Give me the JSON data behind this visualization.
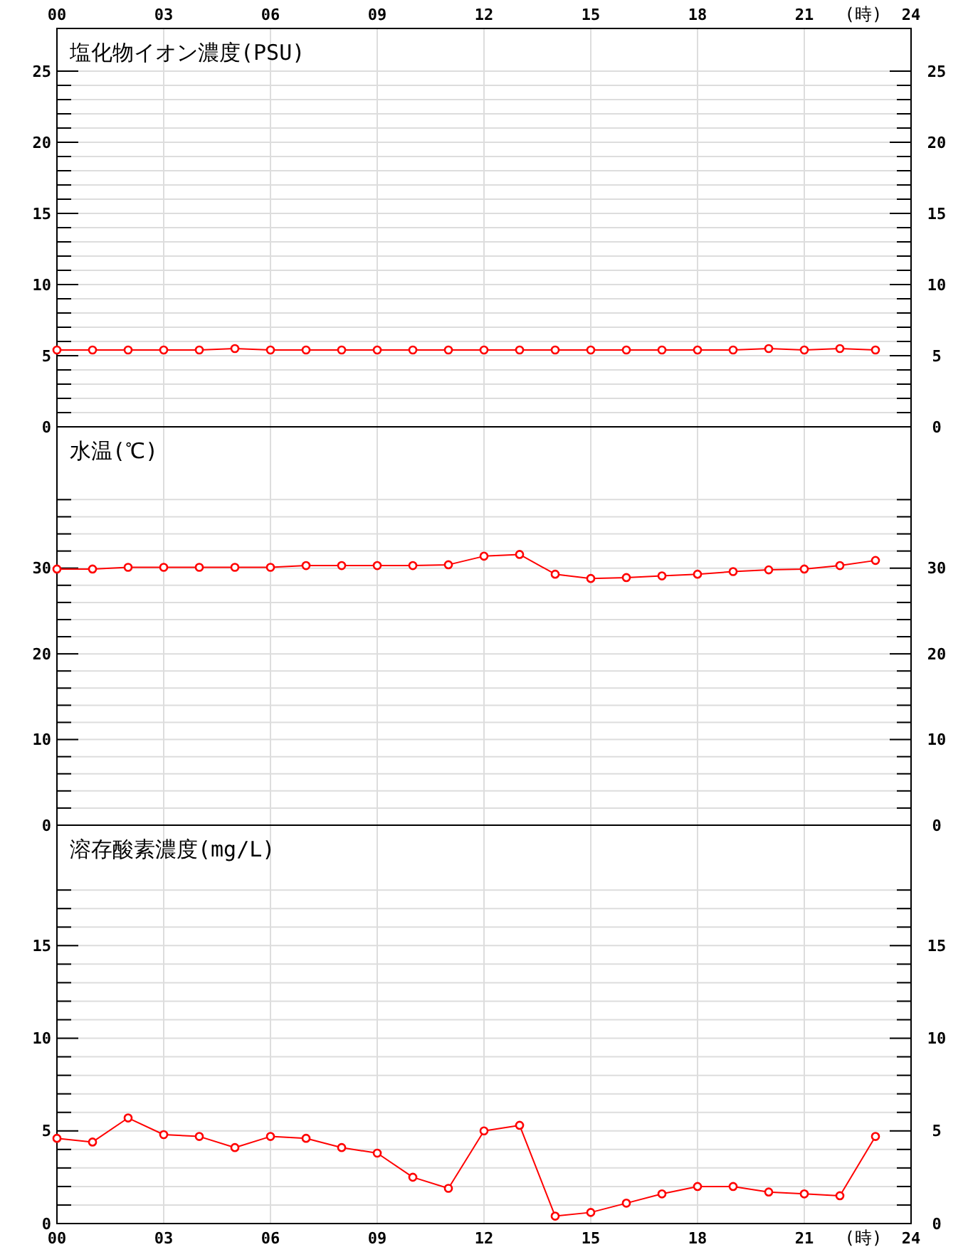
{
  "chart_data": [
    {
      "type": "line",
      "title": "塩化物イオン濃度(PSU)",
      "x2label": "(時)",
      "xlim": [
        0,
        24
      ],
      "x2lim": [
        0,
        24
      ],
      "x2ticks": [
        {
          "value": 0,
          "label": "00"
        },
        {
          "value": 3,
          "label": "03"
        },
        {
          "value": 6,
          "label": "06"
        },
        {
          "value": 9,
          "label": "09"
        },
        {
          "value": 12,
          "label": "12"
        },
        {
          "value": 15,
          "label": "15"
        },
        {
          "value": 18,
          "label": "18"
        },
        {
          "value": 21,
          "label": "21"
        },
        {
          "value": 24,
          "label": "24"
        }
      ],
      "ylim": [
        0,
        28
      ],
      "y2lim": [
        0,
        28
      ],
      "yticks": [
        0,
        {
          "value": 1,
          "label": null
        },
        {
          "value": 2,
          "label": null
        },
        {
          "value": 3,
          "label": null
        },
        {
          "value": 4,
          "label": null
        },
        5,
        {
          "value": 6,
          "label": null
        },
        {
          "value": 7,
          "label": null
        },
        {
          "value": 8,
          "label": null
        },
        {
          "value": 9,
          "label": null
        },
        10,
        {
          "value": 11,
          "label": null
        },
        {
          "value": 12,
          "label": null
        },
        {
          "value": 13,
          "label": null
        },
        {
          "value": 14,
          "label": null
        },
        15,
        {
          "value": 16,
          "label": null
        },
        {
          "value": 17,
          "label": null
        },
        {
          "value": 18,
          "label": null
        },
        {
          "value": 19,
          "label": null
        },
        20,
        {
          "value": 21,
          "label": null
        },
        {
          "value": 22,
          "label": null
        },
        {
          "value": 23,
          "label": null
        },
        {
          "value": 24,
          "label": null
        },
        25
      ],
      "y2ticks": [
        0,
        {
          "value": 1,
          "label": null
        },
        {
          "value": 2,
          "label": null
        },
        {
          "value": 3,
          "label": null
        },
        {
          "value": 4,
          "label": null
        },
        5,
        {
          "value": 6,
          "label": null
        },
        {
          "value": 7,
          "label": null
        },
        {
          "value": 8,
          "label": null
        },
        {
          "value": 9,
          "label": null
        },
        10,
        {
          "value": 11,
          "label": null
        },
        {
          "value": 12,
          "label": null
        },
        {
          "value": 13,
          "label": null
        },
        {
          "value": 14,
          "label": null
        },
        15,
        {
          "value": 16,
          "label": null
        },
        {
          "value": 17,
          "label": null
        },
        {
          "value": 18,
          "label": null
        },
        {
          "value": 19,
          "label": null
        },
        20,
        {
          "value": 21,
          "label": null
        },
        {
          "value": 22,
          "label": null
        },
        {
          "value": 23,
          "label": null
        },
        {
          "value": 24,
          "label": null
        },
        25
      ],
      "grid": true,
      "marker": "circle",
      "line_style": "solid",
      "x": [
        0,
        1,
        2,
        3,
        4,
        5,
        6,
        7,
        8,
        9,
        10,
        11,
        12,
        13,
        14,
        15,
        16,
        17,
        18,
        19,
        20,
        21,
        22,
        23
      ],
      "series": [
        {
          "color": "#ff0000",
          "values": [
            5.4,
            5.4,
            5.4,
            5.4,
            5.4,
            5.5,
            5.4,
            5.4,
            5.4,
            5.4,
            5.4,
            5.4,
            5.4,
            5.4,
            5.4,
            5.4,
            5.4,
            5.4,
            5.4,
            5.4,
            5.5,
            5.4,
            5.5,
            5.4
          ]
        }
      ]
    },
    {
      "type": "line",
      "title": "水温(℃)",
      "xlim": [
        0,
        24
      ],
      "tick_labels": "y",
      "xticks": [
        0,
        3,
        6,
        9,
        12,
        15,
        18,
        21,
        24
      ],
      "ylim": [
        0,
        46.5
      ],
      "y2lim": [
        0,
        46.5
      ],
      "yticks": [
        0,
        {
          "value": 2,
          "label": null
        },
        {
          "value": 4,
          "label": null
        },
        {
          "value": 6,
          "label": null
        },
        {
          "value": 8,
          "label": null
        },
        10,
        {
          "value": 12,
          "label": null
        },
        {
          "value": 14,
          "label": null
        },
        {
          "value": 16,
          "label": null
        },
        {
          "value": 18,
          "label": null
        },
        20,
        {
          "value": 22,
          "label": null
        },
        {
          "value": 24,
          "label": null
        },
        {
          "value": 26,
          "label": null
        },
        {
          "value": 28,
          "label": null
        },
        30,
        {
          "value": 32,
          "label": null
        },
        {
          "value": 34,
          "label": null
        },
        {
          "value": 36,
          "label": null
        },
        {
          "value": 38,
          "label": null
        }
      ],
      "y2ticks": [
        0,
        {
          "value": 2,
          "label": null
        },
        {
          "value": 4,
          "label": null
        },
        {
          "value": 6,
          "label": null
        },
        {
          "value": 8,
          "label": null
        },
        10,
        {
          "value": 12,
          "label": null
        },
        {
          "value": 14,
          "label": null
        },
        {
          "value": 16,
          "label": null
        },
        {
          "value": 18,
          "label": null
        },
        20,
        {
          "value": 22,
          "label": null
        },
        {
          "value": 24,
          "label": null
        },
        {
          "value": 26,
          "label": null
        },
        {
          "value": 28,
          "label": null
        },
        30,
        {
          "value": 32,
          "label": null
        },
        {
          "value": 34,
          "label": null
        },
        {
          "value": 36,
          "label": null
        },
        {
          "value": 38,
          "label": null
        }
      ],
      "grid": true,
      "marker": "circle",
      "line_style": "solid",
      "x": [
        0,
        1,
        2,
        3,
        4,
        5,
        6,
        7,
        8,
        9,
        10,
        11,
        12,
        13,
        14,
        15,
        16,
        17,
        18,
        19,
        20,
        21,
        22,
        23
      ],
      "series": [
        {
          "color": "#ff0000",
          "values": [
            29.9,
            29.9,
            30.1,
            30.1,
            30.1,
            30.1,
            30.1,
            30.3,
            30.3,
            30.3,
            30.3,
            30.4,
            31.4,
            31.6,
            29.3,
            28.8,
            28.9,
            29.1,
            29.3,
            29.6,
            29.8,
            29.9,
            30.3,
            30.9
          ]
        }
      ]
    },
    {
      "type": "line",
      "title": "溶存酸素濃度(mg/L)",
      "xlabel": "(時)",
      "xlim": [
        0,
        24
      ],
      "xticks": [
        {
          "value": 0,
          "label": "00"
        },
        {
          "value": 3,
          "label": "03"
        },
        {
          "value": 6,
          "label": "06"
        },
        {
          "value": 9,
          "label": "09"
        },
        {
          "value": 12,
          "label": "12"
        },
        {
          "value": 15,
          "label": "15"
        },
        {
          "value": 18,
          "label": "18"
        },
        {
          "value": 21,
          "label": "21"
        },
        {
          "value": 24,
          "label": "24"
        }
      ],
      "ylim": [
        0,
        21.5
      ],
      "y2lim": [
        0,
        21.5
      ],
      "yticks": [
        0,
        {
          "value": 1,
          "label": null
        },
        {
          "value": 2,
          "label": null
        },
        {
          "value": 3,
          "label": null
        },
        {
          "value": 4,
          "label": null
        },
        5,
        {
          "value": 6,
          "label": null
        },
        {
          "value": 7,
          "label": null
        },
        {
          "value": 8,
          "label": null
        },
        {
          "value": 9,
          "label": null
        },
        10,
        {
          "value": 11,
          "label": null
        },
        {
          "value": 12,
          "label": null
        },
        {
          "value": 13,
          "label": null
        },
        {
          "value": 14,
          "label": null
        },
        15,
        {
          "value": 16,
          "label": null
        },
        {
          "value": 17,
          "label": null
        },
        {
          "value": 18,
          "label": null
        }
      ],
      "y2ticks": [
        0,
        {
          "value": 1,
          "label": null
        },
        {
          "value": 2,
          "label": null
        },
        {
          "value": 3,
          "label": null
        },
        {
          "value": 4,
          "label": null
        },
        5,
        {
          "value": 6,
          "label": null
        },
        {
          "value": 7,
          "label": null
        },
        {
          "value": 8,
          "label": null
        },
        {
          "value": 9,
          "label": null
        },
        10,
        {
          "value": 11,
          "label": null
        },
        {
          "value": 12,
          "label": null
        },
        {
          "value": 13,
          "label": null
        },
        {
          "value": 14,
          "label": null
        },
        15,
        {
          "value": 16,
          "label": null
        },
        {
          "value": 17,
          "label": null
        },
        {
          "value": 18,
          "label": null
        }
      ],
      "grid": true,
      "marker": "circle",
      "line_style": "solid",
      "x": [
        0,
        1,
        2,
        3,
        4,
        5,
        6,
        7,
        8,
        9,
        10,
        11,
        12,
        13,
        14,
        15,
        16,
        17,
        18,
        19,
        20,
        21,
        22,
        23
      ],
      "series": [
        {
          "color": "#ff0000",
          "values": [
            4.6,
            4.4,
            5.7,
            4.8,
            4.7,
            4.1,
            4.7,
            4.6,
            4.1,
            3.8,
            2.5,
            1.9,
            5.0,
            5.3,
            0.4,
            0.6,
            1.1,
            1.6,
            2.0,
            2.0,
            1.7,
            1.6,
            1.5,
            4.7
          ]
        }
      ]
    }
  ]
}
